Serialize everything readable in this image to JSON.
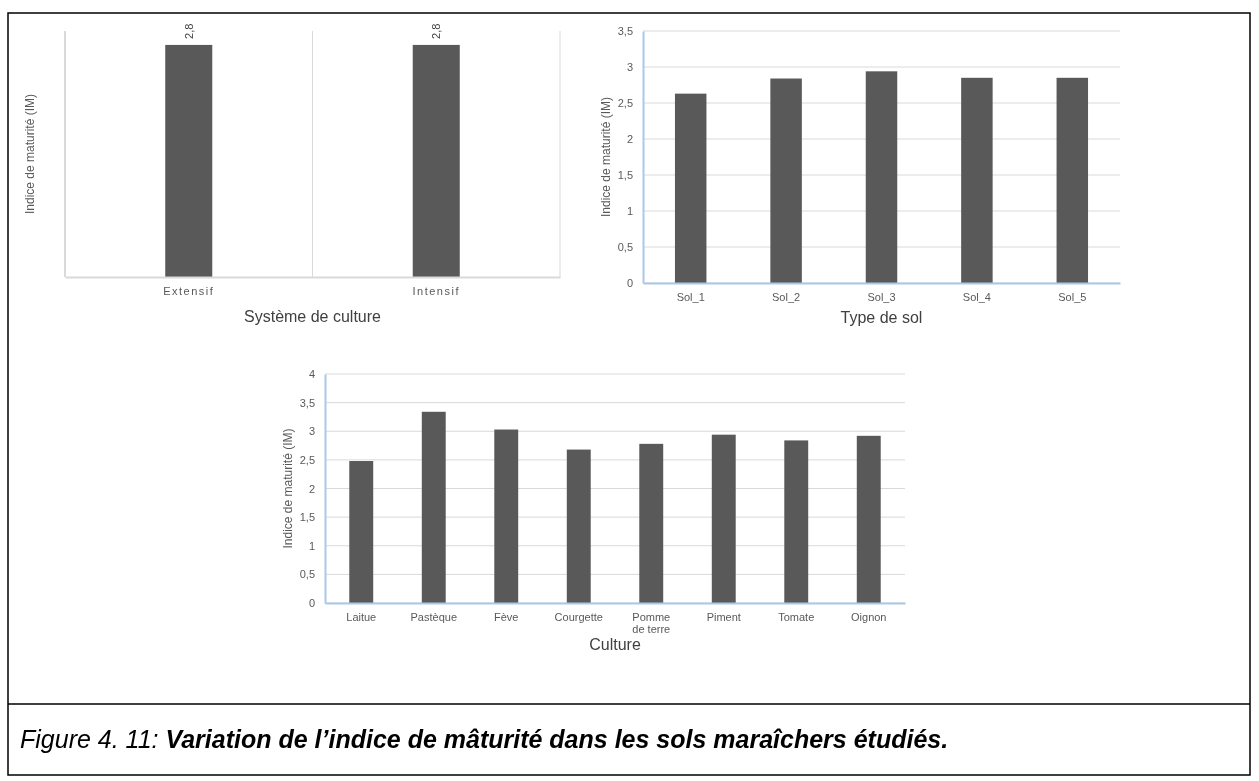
{
  "chart_data": [
    {
      "type": "bar",
      "xlabel": "Système de culture",
      "ylabel": "Indice de maturité (IM)",
      "categories": [
        "Extensif",
        "Intensif"
      ],
      "values": [
        2.8,
        2.8
      ],
      "value_labels": [
        "2,8",
        "2,8"
      ],
      "color": "#595959",
      "grid": "x"
    },
    {
      "type": "bar",
      "xlabel": "Type de sol",
      "ylabel": "Indice de maturité (IM)",
      "categories": [
        "Sol_1",
        "Sol_2",
        "Sol_3",
        "Sol_4",
        "Sol_5"
      ],
      "values": [
        2.63,
        2.84,
        2.94,
        2.85,
        2.85
      ],
      "color": "#595959",
      "ylim": [
        0,
        3.5
      ],
      "yticks": [
        0,
        {
          "value": 0.5,
          "label": "0,5"
        },
        1,
        {
          "value": 1.5,
          "label": "1,5"
        },
        2,
        {
          "value": 2.5,
          "label": "2,5"
        },
        3,
        {
          "value": 3.5,
          "label": "3,5"
        }
      ],
      "grid": "y"
    },
    {
      "type": "bar",
      "xlabel": "Culture",
      "ylabel": "Indice de maturité (IM)",
      "categories": [
        "Laitue",
        "Pastèque",
        "Fève",
        "Courgette",
        "Pomme de terre",
        "Piment",
        "Tomate",
        "Oignon"
      ],
      "values": [
        2.48,
        3.34,
        3.03,
        2.68,
        2.78,
        2.94,
        2.84,
        2.92
      ],
      "color": "#595959",
      "ylim": [
        0,
        4
      ],
      "yticks": [
        0,
        {
          "value": 0.5,
          "label": "0,5"
        },
        1,
        {
          "value": 1.5,
          "label": "1,5"
        },
        2,
        {
          "value": 2.5,
          "label": "2,5"
        },
        3,
        {
          "value": 3.5,
          "label": "3,5"
        },
        4
      ],
      "grid": "y",
      "annotations": [
        "Figure 4. 11: Variation de l’indice de mâturité dans les sols maraîchers étudiés."
      ]
    }
  ]
}
